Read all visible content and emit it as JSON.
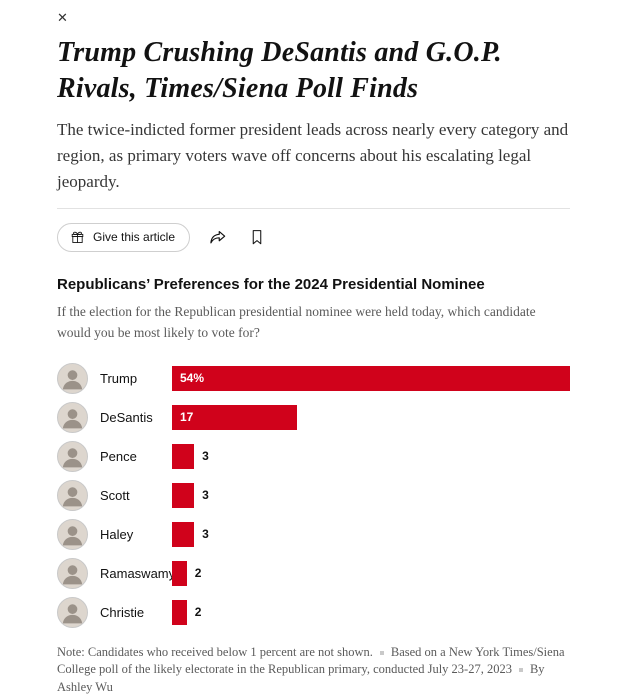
{
  "close_icon": "✕",
  "article": {
    "headline": "Trump Crushing DeSantis and G.O.P. Rivals, Times/Siena Poll Finds",
    "deck": "The twice-indicted former president leads across nearly every category and region, as primary voters wave off concerns about his escalating legal jeopardy."
  },
  "toolbar": {
    "give_article_label": "Give this article"
  },
  "chart_data": {
    "type": "bar",
    "orientation": "horizontal",
    "title": "Republicans’ Preferences for the 2024 Presidential Nominee",
    "subtitle": "If the election for the Republican presidential nominee were held today, which candidate would you be most likely to vote for?",
    "categories": [
      "Trump",
      "DeSantis",
      "Pence",
      "Scott",
      "Haley",
      "Ramaswamy",
      "Christie"
    ],
    "values": [
      54,
      17,
      3,
      3,
      3,
      2,
      2
    ],
    "value_labels": [
      "54%",
      "17",
      "3",
      "3",
      "3",
      "2",
      "2"
    ],
    "xlim": [
      0,
      54
    ],
    "bar_color": "#d0021b",
    "note_parts": [
      "Note: Candidates who received below 1 percent are not shown.",
      "Based on a New York Times/Siena College poll of the likely electorate in the Republican primary, conducted July 23-27, 2023",
      "By Ashley Wu"
    ]
  }
}
